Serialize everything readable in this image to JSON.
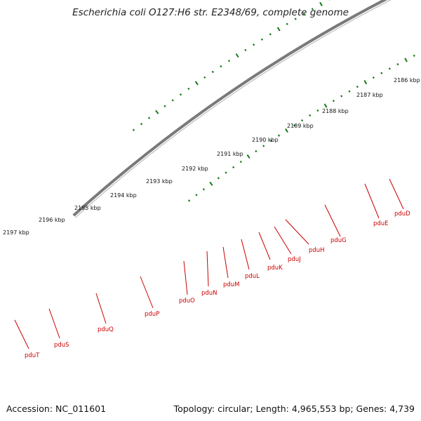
{
  "title": "Escherichia coli O127:H6 str. E2348/69, complete genome",
  "accession": "Accession: NC_011601",
  "topology": "Topology: circular; Length: 4,965,553 bp; Genes: 4,739",
  "colors": {
    "forward_cds": "#ff1a1a",
    "rna": "#00e5ee",
    "reverse_cds": "#0b0b6e",
    "pseudo": "#666666",
    "backbone": "#7a7a7a",
    "gc_ticks": "#1a7a1a",
    "label": "#cc0000"
  },
  "kbp_ticks": [
    "2186 kbp",
    "2187 kbp",
    "2188 kbp",
    "2189 kbp",
    "2190 kbp",
    "2191 kbp",
    "2192 kbp",
    "2193 kbp",
    "2194 kbp",
    "2195 kbp",
    "2196 kbp",
    "2197 kbp"
  ],
  "genes": [
    "pduD",
    "pduE",
    "pduG",
    "pduH",
    "pduJ",
    "pduK",
    "pduL",
    "pduM",
    "pduN",
    "pduO",
    "pduP",
    "pduQ",
    "pduS",
    "pduT"
  ]
}
